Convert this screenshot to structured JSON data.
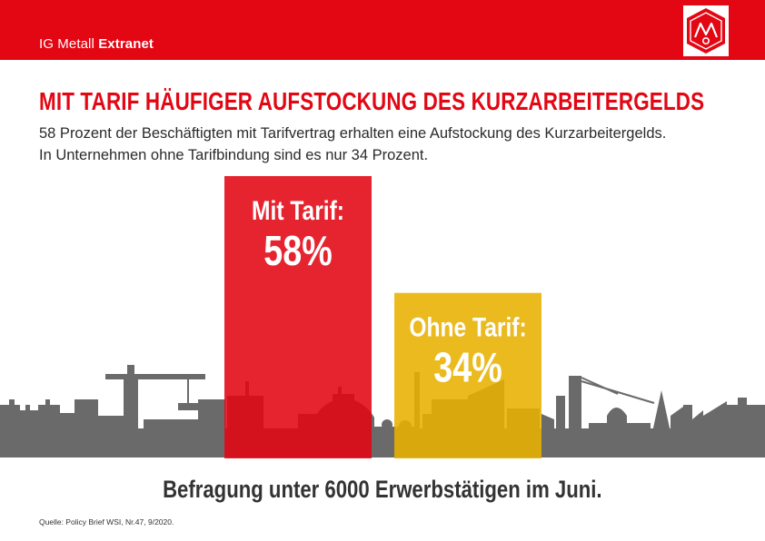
{
  "header": {
    "brand_regular": "IG Metall",
    "brand_bold": "Extranet",
    "logo_text": "IGM"
  },
  "title": "MIT TARIF HÄUFIGER AUFSTOCKUNG DES KURZARBEITERGELDS",
  "subtitle": "58 Prozent der Beschäftigten mit Tarifvertrag erhalten eine Aufstockung des Kurzarbeitergelds. In Unternehmen ohne Tarifbindung sind es nur 34 Prozent.",
  "footer": "Befragung unter 6000 Erwerbstätigen im Juni.",
  "source": "Quelle: Policy Brief WSI, Nr.47, 9/2020.",
  "colors": {
    "brand_red": "#e30613",
    "bar_mit_tarif": "#e30613",
    "bar_ohne_tarif": "#e7b000",
    "skyline": "#6a6a6a"
  },
  "chart_data": {
    "type": "bar",
    "categories": [
      "Mit Tarif:",
      "Ohne Tarif:"
    ],
    "values": [
      58,
      34
    ],
    "value_labels": [
      "58%",
      "34%"
    ],
    "unit": "%",
    "ylim": [
      0,
      100
    ],
    "grid": false,
    "legend": "none"
  }
}
